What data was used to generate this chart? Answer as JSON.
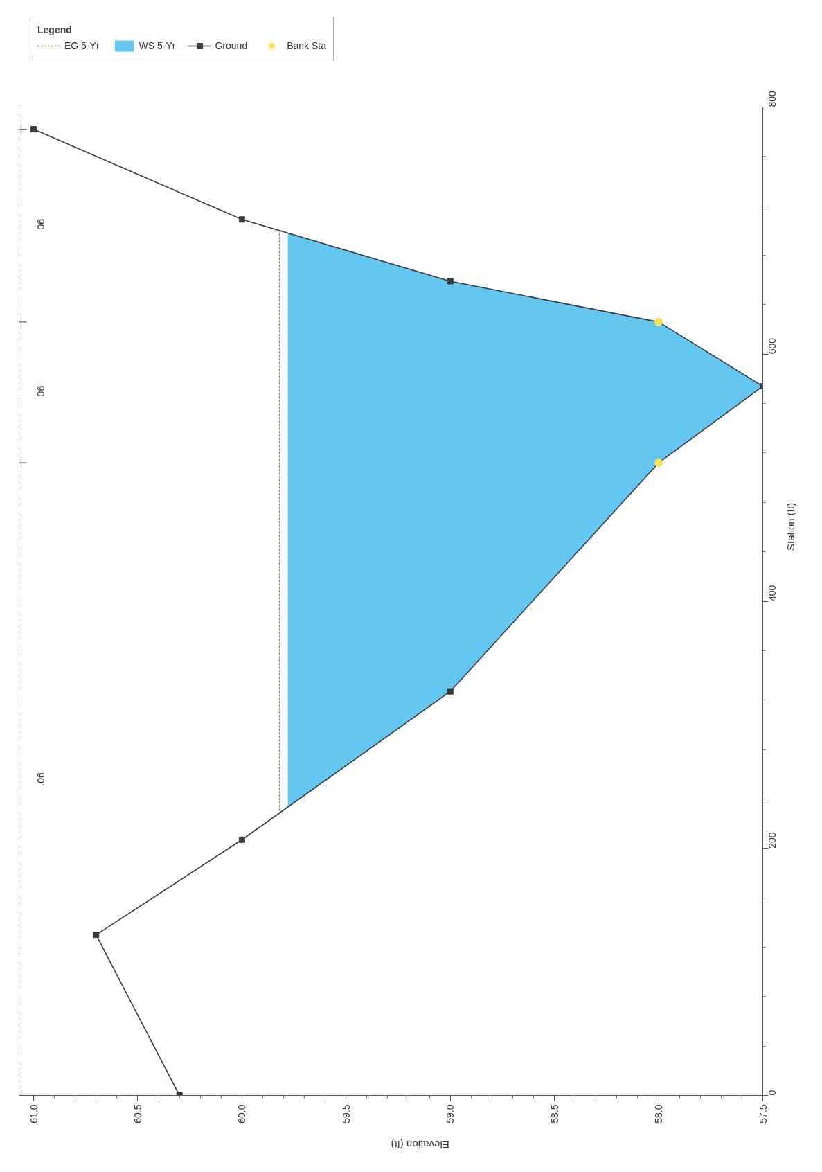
{
  "chart_data": {
    "type": "line",
    "xlabel": "Elevation (ft)",
    "ylabel": "Station (ft)",
    "legend_title": "Legend",
    "legend": "top left",
    "xlim": [
      61.07,
      57.5
    ],
    "xticks": [
      {
        "value": 61,
        "label": "61.0"
      },
      {
        "value": 60.9,
        "label": null
      },
      {
        "value": 60.8,
        "label": null
      },
      {
        "value": 60.7,
        "label": null
      },
      {
        "value": 60.6,
        "label": null
      },
      60.5,
      {
        "value": 60.4,
        "label": null
      },
      {
        "value": 60.3,
        "label": null
      },
      {
        "value": 60.2,
        "label": null
      },
      {
        "value": 60.1,
        "label": null
      },
      {
        "value": 60,
        "label": "60.0"
      },
      {
        "value": 59.9,
        "label": null
      },
      {
        "value": 59.8,
        "label": null
      },
      {
        "value": 59.7,
        "label": null
      },
      {
        "value": 59.6,
        "label": null
      },
      59.5,
      {
        "value": 59.4,
        "label": null
      },
      {
        "value": 59.3,
        "label": null
      },
      {
        "value": 59.2,
        "label": null
      },
      {
        "value": 59.1,
        "label": null
      },
      {
        "value": 59,
        "label": "59.0"
      },
      {
        "value": 58.9,
        "label": null
      },
      {
        "value": 58.8,
        "label": null
      },
      {
        "value": 58.7,
        "label": null
      },
      {
        "value": 58.6,
        "label": null
      },
      58.5,
      {
        "value": 58.4,
        "label": null
      },
      {
        "value": 58.3,
        "label": null
      },
      {
        "value": 58.2,
        "label": null
      },
      {
        "value": 58.1,
        "label": null
      },
      {
        "value": 58,
        "label": "58.0"
      },
      {
        "value": 57.9,
        "label": null
      },
      {
        "value": 57.8,
        "label": null
      },
      {
        "value": 57.7,
        "label": null
      },
      {
        "value": 57.6,
        "label": null
      },
      57.5
    ],
    "ylim": [
      0,
      800
    ],
    "yticks": [
      0,
      {
        "value": 40,
        "label": null
      },
      {
        "value": 80,
        "label": null
      },
      {
        "value": 120,
        "label": null
      },
      {
        "value": 160,
        "label": null
      },
      200,
      {
        "value": 240,
        "label": null
      },
      {
        "value": 280,
        "label": null
      },
      {
        "value": 320,
        "label": null
      },
      {
        "value": 360,
        "label": null
      },
      400,
      {
        "value": 440,
        "label": null
      },
      {
        "value": 480,
        "label": null
      },
      {
        "value": 520,
        "label": null
      },
      {
        "value": 560,
        "label": null
      },
      600,
      {
        "value": 640,
        "label": null
      },
      {
        "value": 680,
        "label": null
      },
      {
        "value": 720,
        "label": null
      },
      {
        "value": 760,
        "label": null
      },
      800
    ],
    "series": [
      {
        "name": "EG 5-Yr",
        "line_style": "dotted",
        "color": "#6b9b5e",
        "x": [
          59.82,
          59.82
        ],
        "values": [
          228,
          700
        ]
      },
      {
        "name": "WS 5-Yr",
        "type": "area",
        "color": "#63c7f2",
        "x": [
          59.78,
          59.0,
          58.0,
          57.5,
          58.0,
          59.0,
          59.78
        ],
        "values": [
          233,
          327,
          512,
          574,
          626,
          659,
          698
        ]
      },
      {
        "name": "Ground",
        "marker": "square",
        "color": "#3a3a3a",
        "x": [
          60.3,
          60.7,
          60.0,
          59.0,
          58.0,
          57.5,
          58.0,
          59.0,
          60.0,
          61.0
        ],
        "values": [
          0,
          130,
          207,
          327,
          512,
          574,
          626,
          659,
          709,
          782
        ]
      },
      {
        "name": "Bank Sta",
        "type": "scatter",
        "marker": "circle",
        "color": "#fde35a",
        "x": [
          58.0,
          58.0
        ],
        "values": [
          512,
          626
        ]
      },
      {
        "type": "scatter",
        "marker": "cross",
        "color": "#666666",
        "x": [
          61.06,
          61.06,
          61.06,
          61.06
        ],
        "values": [
          0,
          512,
          626,
          782
        ]
      }
    ],
    "ref_lines": [
      {
        "axis": "x",
        "value": 61.06,
        "line_style": "dashed",
        "color": "#777777"
      }
    ],
    "annotations": [
      ".06",
      ".06",
      ".06"
    ]
  }
}
